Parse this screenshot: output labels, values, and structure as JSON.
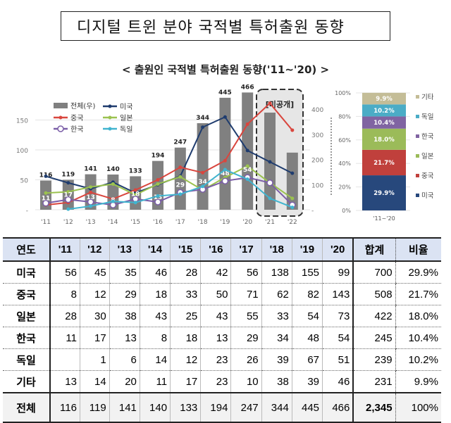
{
  "title": "디지털 트윈 분야 국적별 특허출원 동향",
  "chart_data": [
    {
      "type": "bar+line",
      "title": "< 출원인 국적별 특허출원 동향('11~'20) >",
      "categories": [
        "'11",
        "'12",
        "'13",
        "'14",
        "'15",
        "'16",
        "'17",
        "'18",
        "'19",
        "'20",
        "'21",
        "'22"
      ],
      "left_axis": {
        "ticks": [
          "-",
          "50",
          "100",
          "150"
        ],
        "range": [
          0,
          175
        ]
      },
      "right_axis": {
        "ticks": [
          "-",
          "100",
          "200",
          "300",
          "400"
        ],
        "range": [
          0,
          470
        ]
      },
      "unpublished_label": "[미공개]",
      "bar_series": {
        "name": "전체(우)",
        "color": "#808080",
        "values": [
          116,
          119,
          141,
          140,
          133,
          194,
          247,
          344,
          445,
          466,
          386,
          227
        ],
        "data_labels": [
          "116",
          "119",
          "141",
          "140",
          "133",
          "194",
          "247",
          "344",
          "445",
          "466",
          "",
          ""
        ]
      },
      "line_series": [
        {
          "name": "미국",
          "color": "#1f3c6e",
          "values": [
            56,
            45,
            35,
            46,
            28,
            42,
            56,
            138,
            155,
            99,
            80,
            61
          ]
        },
        {
          "name": "중국",
          "color": "#d9463e",
          "values": [
            8,
            12,
            29,
            18,
            33,
            50,
            71,
            62,
            82,
            143,
            178,
            133
          ]
        },
        {
          "name": "일본",
          "color": "#9bc24f",
          "values": [
            28,
            30,
            38,
            43,
            25,
            43,
            55,
            33,
            54,
            73,
            45,
            19
          ]
        },
        {
          "name": "한국",
          "color": "#7b5ea7",
          "values": [
            11,
            17,
            13,
            8,
            18,
            13,
            29,
            34,
            48,
            54,
            45,
            8
          ],
          "data_labels": [
            "11",
            "17",
            "13",
            "8",
            "18",
            "13",
            "29",
            "34",
            "48",
            "54",
            "",
            ""
          ]
        },
        {
          "name": "독일",
          "color": "#41b4cf",
          "values": [
            null,
            1,
            6,
            14,
            12,
            23,
            26,
            39,
            67,
            51,
            19,
            4
          ]
        }
      ],
      "legend": "top-left",
      "grid": true
    },
    {
      "type": "stacked-bar",
      "categories": [
        "'11~'20"
      ],
      "y_ticks": [
        "0%",
        "20%",
        "40%",
        "60%",
        "80%",
        "100%"
      ],
      "series": [
        {
          "name": "미국",
          "value": 29.9,
          "label": "29.9%",
          "color": "#27487c"
        },
        {
          "name": "중국",
          "value": 21.7,
          "label": "21.7%",
          "color": "#c0403c"
        },
        {
          "name": "일본",
          "value": 18.0,
          "label": "18.0%",
          "color": "#9bbb59"
        },
        {
          "name": "한국",
          "value": 10.4,
          "label": "10.4%",
          "color": "#8064a2"
        },
        {
          "name": "독일",
          "value": 10.2,
          "label": "10.2%",
          "color": "#4bacc6"
        },
        {
          "name": "기타",
          "value": 9.9,
          "label": "9.9%",
          "color": "#c4bd97"
        }
      ]
    }
  ],
  "table": {
    "headers": [
      "연도",
      "'11",
      "'12",
      "'13",
      "'14",
      "'15",
      "'16",
      "'17",
      "'18",
      "'19",
      "'20",
      "합계",
      "비율"
    ],
    "rows": [
      [
        "미국",
        "56",
        "45",
        "35",
        "46",
        "28",
        "42",
        "56",
        "138",
        "155",
        "99",
        "700",
        "29.9%"
      ],
      [
        "중국",
        "8",
        "12",
        "29",
        "18",
        "33",
        "50",
        "71",
        "62",
        "82",
        "143",
        "508",
        "21.7%"
      ],
      [
        "일본",
        "28",
        "30",
        "38",
        "43",
        "25",
        "43",
        "55",
        "33",
        "54",
        "73",
        "422",
        "18.0%"
      ],
      [
        "한국",
        "11",
        "17",
        "13",
        "8",
        "18",
        "13",
        "29",
        "34",
        "48",
        "54",
        "245",
        "10.4%"
      ],
      [
        "독일",
        "",
        "1",
        "6",
        "14",
        "12",
        "23",
        "26",
        "39",
        "67",
        "51",
        "239",
        "10.2%"
      ],
      [
        "기타",
        "13",
        "14",
        "20",
        "11",
        "17",
        "23",
        "10",
        "38",
        "39",
        "46",
        "231",
        "9.9%"
      ]
    ],
    "total": [
      "전체",
      "116",
      "119",
      "141",
      "140",
      "133",
      "194",
      "247",
      "344",
      "445",
      "466",
      "2,345",
      "100%"
    ]
  }
}
